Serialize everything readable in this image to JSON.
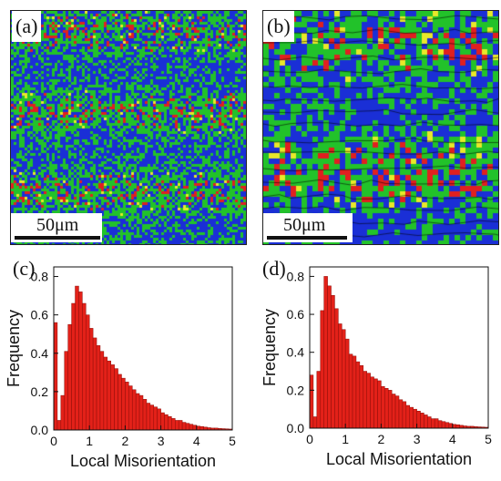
{
  "panels": {
    "a": {
      "label": "(a)",
      "scalebar": "50μm"
    },
    "b": {
      "label": "(b)",
      "scalebar": "50μm"
    },
    "c": {
      "label": "(c)"
    },
    "d": {
      "label": "(d)"
    }
  },
  "colors": {
    "bar_fill": "#e32119",
    "bar_edge": "#8c0d08",
    "map_blue": "#1a2fd6",
    "map_green": "#22c22a",
    "map_yellow": "#e8e82a",
    "map_red": "#e02020"
  },
  "chart_data": [
    {
      "panel": "(c)",
      "type": "bar",
      "xlabel": "Local Misorientation",
      "ylabel": "Frequency",
      "xlim": [
        0,
        5
      ],
      "ylim": [
        0,
        0.85
      ],
      "xticks": [
        "0",
        "1",
        "2",
        "3",
        "4",
        "5"
      ],
      "yticks": [
        "0.0",
        "0.2",
        "0.4",
        "0.6",
        "0.8"
      ],
      "bin_width": 0.1,
      "x": [
        0.05,
        0.15,
        0.25,
        0.35,
        0.45,
        0.55,
        0.65,
        0.75,
        0.85,
        0.95,
        1.05,
        1.15,
        1.25,
        1.35,
        1.45,
        1.55,
        1.65,
        1.75,
        1.85,
        1.95,
        2.05,
        2.15,
        2.25,
        2.35,
        2.45,
        2.55,
        2.65,
        2.75,
        2.85,
        2.95,
        3.05,
        3.15,
        3.25,
        3.35,
        3.45,
        3.55,
        3.65,
        3.75,
        3.85,
        3.95,
        4.05,
        4.15,
        4.25,
        4.35,
        4.45,
        4.55,
        4.65,
        4.75,
        4.85,
        4.95
      ],
      "values": [
        0.56,
        0.05,
        0.18,
        0.41,
        0.55,
        0.66,
        0.75,
        0.72,
        0.66,
        0.6,
        0.53,
        0.48,
        0.44,
        0.41,
        0.38,
        0.36,
        0.34,
        0.32,
        0.29,
        0.27,
        0.25,
        0.23,
        0.21,
        0.19,
        0.18,
        0.16,
        0.14,
        0.13,
        0.12,
        0.11,
        0.09,
        0.08,
        0.07,
        0.06,
        0.05,
        0.05,
        0.04,
        0.035,
        0.03,
        0.025,
        0.02,
        0.018,
        0.015,
        0.012,
        0.01,
        0.01,
        0.008,
        0.007,
        0.006,
        0.005
      ]
    },
    {
      "panel": "(d)",
      "type": "bar",
      "xlabel": "Local Misorientation",
      "ylabel": "Frequency",
      "xlim": [
        0,
        5
      ],
      "ylim": [
        0,
        0.85
      ],
      "xticks": [
        "0",
        "1",
        "2",
        "3",
        "4",
        "5"
      ],
      "yticks": [
        "0.0",
        "0.2",
        "0.4",
        "0.6",
        "0.8"
      ],
      "bin_width": 0.1,
      "x": [
        0.05,
        0.15,
        0.25,
        0.35,
        0.45,
        0.55,
        0.65,
        0.75,
        0.85,
        0.95,
        1.05,
        1.15,
        1.25,
        1.35,
        1.45,
        1.55,
        1.65,
        1.75,
        1.85,
        1.95,
        2.05,
        2.15,
        2.25,
        2.35,
        2.45,
        2.55,
        2.65,
        2.75,
        2.85,
        2.95,
        3.05,
        3.15,
        3.25,
        3.35,
        3.45,
        3.55,
        3.65,
        3.75,
        3.85,
        3.95,
        4.05,
        4.15,
        4.25,
        4.35,
        4.45,
        4.55,
        4.65,
        4.75,
        4.85,
        4.95
      ],
      "values": [
        0.28,
        0.06,
        0.3,
        0.62,
        0.8,
        0.75,
        0.7,
        0.63,
        0.55,
        0.52,
        0.47,
        0.39,
        0.38,
        0.35,
        0.33,
        0.3,
        0.29,
        0.27,
        0.26,
        0.25,
        0.22,
        0.21,
        0.2,
        0.18,
        0.17,
        0.15,
        0.14,
        0.12,
        0.11,
        0.1,
        0.09,
        0.08,
        0.07,
        0.06,
        0.05,
        0.05,
        0.04,
        0.035,
        0.03,
        0.025,
        0.02,
        0.018,
        0.015,
        0.012,
        0.01,
        0.01,
        0.008,
        0.007,
        0.006,
        0.005
      ]
    }
  ]
}
